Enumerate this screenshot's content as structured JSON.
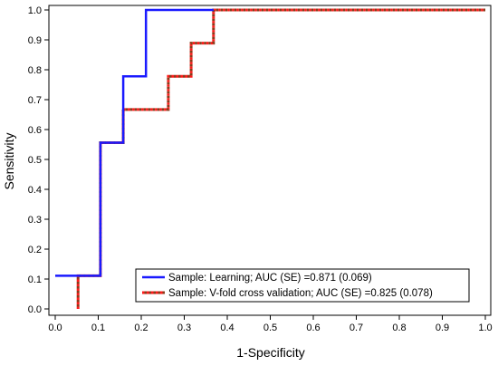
{
  "chart_data": {
    "type": "line",
    "title": "",
    "xlabel": "1-Specificity",
    "ylabel": "Sensitivity",
    "xlim": [
      0.0,
      1.0
    ],
    "ylim": [
      0.0,
      1.0
    ],
    "xticks": [
      "0.0",
      "0.1",
      "0.2",
      "0.3",
      "0.4",
      "0.5",
      "0.6",
      "0.7",
      "0.8",
      "0.9",
      "1.0"
    ],
    "yticks": [
      "0.0",
      "0.1",
      "0.2",
      "0.3",
      "0.4",
      "0.5",
      "0.6",
      "0.7",
      "0.8",
      "0.9",
      "1.0"
    ],
    "grid": false,
    "legend_position": "bottom-right",
    "series": [
      {
        "name": "Sample: Learning; AUC (SE) =0.871 (0.069)",
        "color": "#1a1aff",
        "style": "solid",
        "x": [
          0.0,
          0.105,
          0.105,
          0.158,
          0.158,
          0.211,
          0.211,
          0.368
        ],
        "y": [
          0.111,
          0.111,
          0.556,
          0.556,
          0.778,
          0.778,
          1.0,
          1.0
        ]
      },
      {
        "name": "Sample: V-fold cross validation; AUC (SE) =0.825 (0.078)",
        "color_a": "#ff1a1a",
        "color_b": "#8b3a1a",
        "style": "dotted",
        "x": [
          0.053,
          0.053,
          0.105,
          0.105,
          0.158,
          0.158,
          0.263,
          0.263,
          0.316,
          0.316,
          0.368,
          0.368,
          1.0
        ],
        "y": [
          0.0,
          0.111,
          0.111,
          0.556,
          0.556,
          0.667,
          0.667,
          0.778,
          0.778,
          0.889,
          0.889,
          1.0,
          1.0
        ]
      }
    ]
  }
}
